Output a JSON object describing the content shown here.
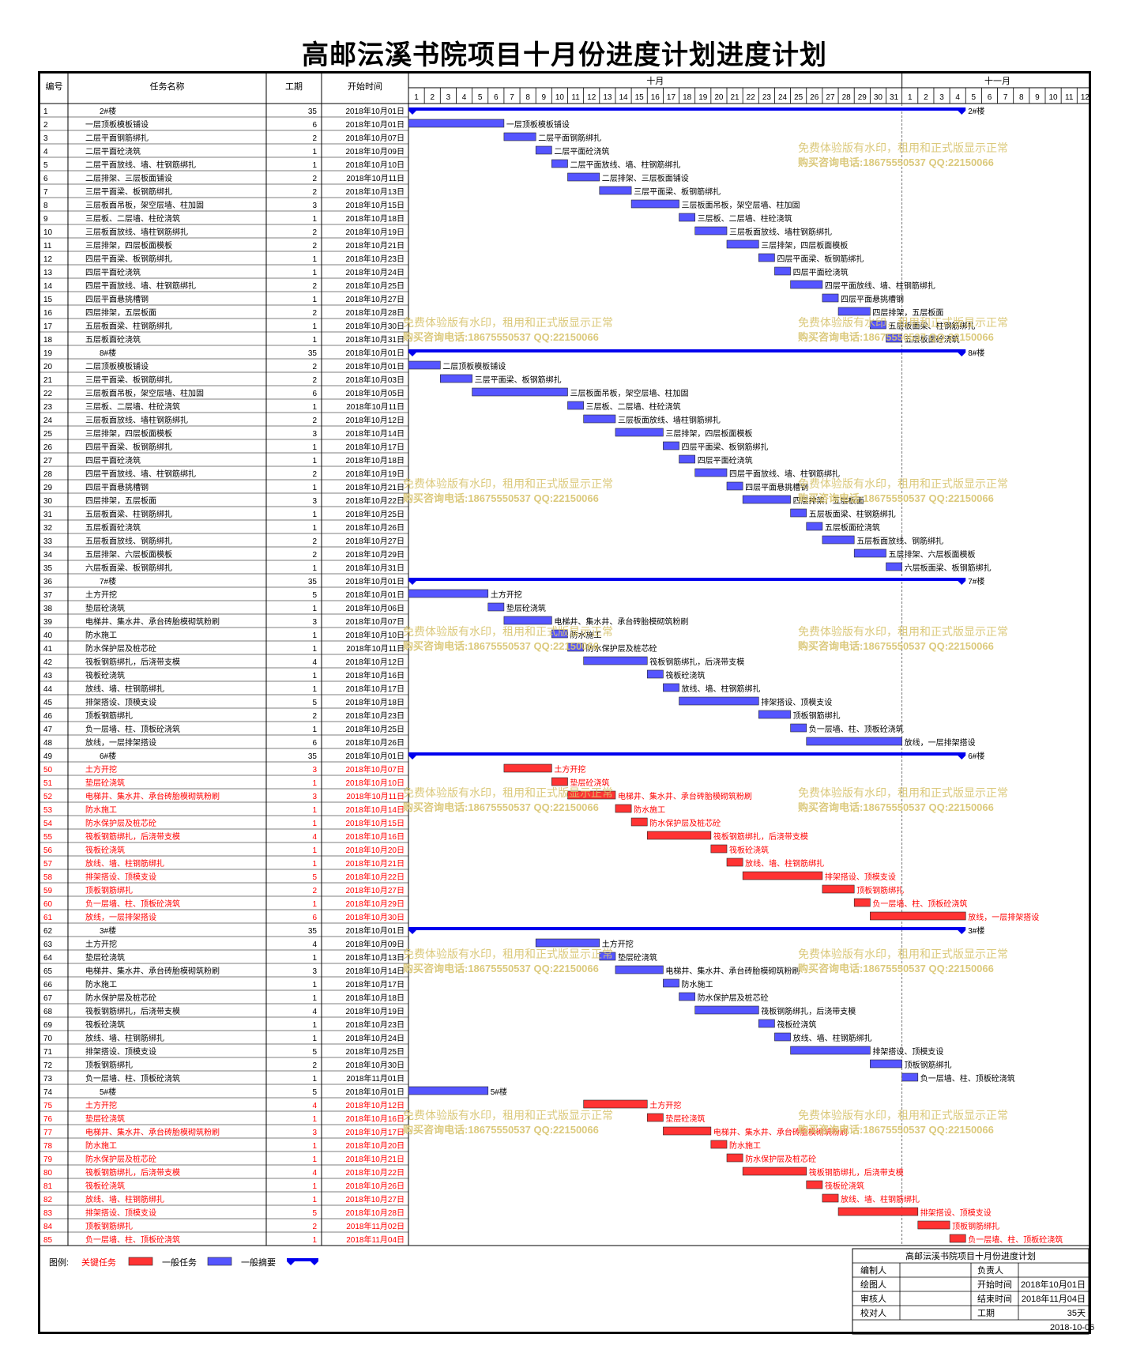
{
  "title": "高邮沄溪书院项目十月份进度计划进度计划",
  "headers": {
    "id": "编号",
    "name": "任务名称",
    "dur": "工期",
    "start": "开始时间"
  },
  "months": [
    {
      "label": "十月",
      "days": 31
    },
    {
      "label": "十一月",
      "days": 12
    }
  ],
  "watermark": {
    "line1": "免费体验版有水印，租用和正式版显示正常",
    "line2": "购买咨询电话:18675550537 QQ:22150066"
  },
  "legend": {
    "label": "图例:",
    "critical": "关键任务",
    "normal": "一般任务",
    "summary": "一般摘要"
  },
  "info": {
    "project": "高邮沄溪书院项目十月份进度计划",
    "made_by": "编制人",
    "owner": "负责人",
    "drawn_by": "绘图人",
    "start_label": "开始时间",
    "start": "2018年10月01日",
    "reviewed_by": "审核人",
    "end_label": "结束时间",
    "end": "2018年11月04日",
    "checked_by": "校对人",
    "dur_label": "工期",
    "dur": "35天",
    "date": "2018-10-06"
  },
  "colors": {
    "critical": "#ff3333",
    "normal": "#5555ff",
    "summary": "#0000ee",
    "critical_text": "#ff0000"
  },
  "chart_data": {
    "type": "gantt",
    "x_axis": "2018年10月1日 – 11月12日",
    "tasks": [
      {
        "id": 1,
        "name": "2#楼",
        "dur": 35,
        "start": "2018年10月01日",
        "type": "summary",
        "level": 0
      },
      {
        "id": 2,
        "name": "一层顶板模板铺设",
        "dur": 6,
        "start": "2018年10月01日",
        "type": "normal",
        "level": 1
      },
      {
        "id": 3,
        "name": "二层平面钢筋绑扎",
        "dur": 2,
        "start": "2018年10月07日",
        "type": "normal",
        "level": 1
      },
      {
        "id": 4,
        "name": "二层平面砼浇筑",
        "dur": 1,
        "start": "2018年10月09日",
        "type": "normal",
        "level": 1
      },
      {
        "id": 5,
        "name": "二层平面放线、墙、柱钢筋绑扎",
        "dur": 1,
        "start": "2018年10月10日",
        "type": "normal",
        "level": 1
      },
      {
        "id": 6,
        "name": "二层排架、三层板面铺设",
        "dur": 2,
        "start": "2018年10月11日",
        "type": "normal",
        "level": 1
      },
      {
        "id": 7,
        "name": "三层平面梁、板钢筋绑扎",
        "dur": 2,
        "start": "2018年10月13日",
        "type": "normal",
        "level": 1
      },
      {
        "id": 8,
        "name": "三层板面吊板，架空层墙、柱加固",
        "dur": 3,
        "start": "2018年10月15日",
        "type": "normal",
        "level": 1
      },
      {
        "id": 9,
        "name": "三层板、二层墙、柱砼浇筑",
        "dur": 1,
        "start": "2018年10月18日",
        "type": "normal",
        "level": 1
      },
      {
        "id": 10,
        "name": "三层板面放线、墙柱钢筋绑扎",
        "dur": 2,
        "start": "2018年10月19日",
        "type": "normal",
        "level": 1
      },
      {
        "id": 11,
        "name": "三层排架，四层板面模板",
        "dur": 2,
        "start": "2018年10月21日",
        "type": "normal",
        "level": 1
      },
      {
        "id": 12,
        "name": "四层平面梁、板钢筋绑扎",
        "dur": 1,
        "start": "2018年10月23日",
        "type": "normal",
        "level": 1
      },
      {
        "id": 13,
        "name": "四层平面砼浇筑",
        "dur": 1,
        "start": "2018年10月24日",
        "type": "normal",
        "level": 1
      },
      {
        "id": 14,
        "name": "四层平面放线、墙、柱钢筋绑扎",
        "dur": 2,
        "start": "2018年10月25日",
        "type": "normal",
        "level": 1
      },
      {
        "id": 15,
        "name": "四层平面悬挑槽钢",
        "dur": 1,
        "start": "2018年10月27日",
        "type": "normal",
        "level": 1
      },
      {
        "id": 16,
        "name": "四层排架，五层板面",
        "dur": 2,
        "start": "2018年10月28日",
        "type": "normal",
        "level": 1
      },
      {
        "id": 17,
        "name": "五层板面梁、柱钢筋绑扎",
        "dur": 1,
        "start": "2018年10月30日",
        "type": "normal",
        "level": 1
      },
      {
        "id": 18,
        "name": "五层板面砼浇筑",
        "dur": 1,
        "start": "2018年10月31日",
        "type": "normal",
        "level": 1
      },
      {
        "id": 19,
        "name": "8#楼",
        "dur": 35,
        "start": "2018年10月01日",
        "type": "summary",
        "level": 0
      },
      {
        "id": 20,
        "name": "二层顶板模板铺设",
        "dur": 2,
        "start": "2018年10月01日",
        "type": "normal",
        "level": 1
      },
      {
        "id": 21,
        "name": "三层平面梁、板钢筋绑扎",
        "dur": 2,
        "start": "2018年10月03日",
        "type": "normal",
        "level": 1
      },
      {
        "id": 22,
        "name": "三层板面吊板，架空层墙、柱加固",
        "dur": 6,
        "start": "2018年10月05日",
        "type": "normal",
        "level": 1
      },
      {
        "id": 23,
        "name": "三层板、二层墙、柱砼浇筑",
        "dur": 1,
        "start": "2018年10月11日",
        "type": "normal",
        "level": 1
      },
      {
        "id": 24,
        "name": "三层板面放线、墙柱钢筋绑扎",
        "dur": 2,
        "start": "2018年10月12日",
        "type": "normal",
        "level": 1
      },
      {
        "id": 25,
        "name": "三层排架，四层板面模板",
        "dur": 3,
        "start": "2018年10月14日",
        "type": "normal",
        "level": 1
      },
      {
        "id": 26,
        "name": "四层平面梁、板钢筋绑扎",
        "dur": 1,
        "start": "2018年10月17日",
        "type": "normal",
        "level": 1
      },
      {
        "id": 27,
        "name": "四层平面砼浇筑",
        "dur": 1,
        "start": "2018年10月18日",
        "type": "normal",
        "level": 1
      },
      {
        "id": 28,
        "name": "四层平面放线、墙、柱钢筋绑扎",
        "dur": 2,
        "start": "2018年10月19日",
        "type": "normal",
        "level": 1
      },
      {
        "id": 29,
        "name": "四层平面悬挑槽钢",
        "dur": 1,
        "start": "2018年10月21日",
        "type": "normal",
        "level": 1
      },
      {
        "id": 30,
        "name": "四层排架，五层板面",
        "dur": 3,
        "start": "2018年10月22日",
        "type": "normal",
        "level": 1
      },
      {
        "id": 31,
        "name": "五层板面梁、柱钢筋绑扎",
        "dur": 1,
        "start": "2018年10月25日",
        "type": "normal",
        "level": 1
      },
      {
        "id": 32,
        "name": "五层板面砼浇筑",
        "dur": 1,
        "start": "2018年10月26日",
        "type": "normal",
        "level": 1
      },
      {
        "id": 33,
        "name": "五层板面放线、钢筋绑扎",
        "dur": 2,
        "start": "2018年10月27日",
        "type": "normal",
        "level": 1
      },
      {
        "id": 34,
        "name": "五层排架、六层板面模板",
        "dur": 2,
        "start": "2018年10月29日",
        "type": "normal",
        "level": 1
      },
      {
        "id": 35,
        "name": "六层板面梁、板钢筋绑扎",
        "dur": 1,
        "start": "2018年10月31日",
        "type": "normal",
        "level": 1
      },
      {
        "id": 36,
        "name": "7#楼",
        "dur": 35,
        "start": "2018年10月01日",
        "type": "summary",
        "level": 0
      },
      {
        "id": 37,
        "name": "土方开挖",
        "dur": 5,
        "start": "2018年10月01日",
        "type": "normal",
        "level": 1
      },
      {
        "id": 38,
        "name": "垫层砼浇筑",
        "dur": 1,
        "start": "2018年10月06日",
        "type": "normal",
        "level": 1
      },
      {
        "id": 39,
        "name": "电梯井、集水井、承台砖胎模砌筑粉刷",
        "dur": 3,
        "start": "2018年10月07日",
        "type": "normal",
        "level": 1
      },
      {
        "id": 40,
        "name": "防水施工",
        "dur": 1,
        "start": "2018年10月10日",
        "type": "normal",
        "level": 1
      },
      {
        "id": 41,
        "name": "防水保护层及桩芯砼",
        "dur": 1,
        "start": "2018年10月11日",
        "type": "normal",
        "level": 1
      },
      {
        "id": 42,
        "name": "筏板钢筋绑扎，后浇带支模",
        "dur": 4,
        "start": "2018年10月12日",
        "type": "normal",
        "level": 1
      },
      {
        "id": 43,
        "name": "筏板砼浇筑",
        "dur": 1,
        "start": "2018年10月16日",
        "type": "normal",
        "level": 1
      },
      {
        "id": 44,
        "name": "放线、墙、柱钢筋绑扎",
        "dur": 1,
        "start": "2018年10月17日",
        "type": "normal",
        "level": 1
      },
      {
        "id": 45,
        "name": "排架搭设、顶模支设",
        "dur": 5,
        "start": "2018年10月18日",
        "type": "normal",
        "level": 1
      },
      {
        "id": 46,
        "name": "顶板钢筋绑扎",
        "dur": 2,
        "start": "2018年10月23日",
        "type": "normal",
        "level": 1
      },
      {
        "id": 47,
        "name": "负一层墙、柱、顶板砼浇筑",
        "dur": 1,
        "start": "2018年10月25日",
        "type": "normal",
        "level": 1
      },
      {
        "id": 48,
        "name": "放线，一层排架搭设",
        "dur": 6,
        "start": "2018年10月26日",
        "type": "normal",
        "level": 1
      },
      {
        "id": 49,
        "name": "6#楼",
        "dur": 35,
        "start": "2018年10月01日",
        "type": "summary",
        "level": 0
      },
      {
        "id": 50,
        "name": "土方开挖",
        "dur": 3,
        "start": "2018年10月07日",
        "type": "critical",
        "level": 1
      },
      {
        "id": 51,
        "name": "垫层砼浇筑",
        "dur": 1,
        "start": "2018年10月10日",
        "type": "critical",
        "level": 1
      },
      {
        "id": 52,
        "name": "电梯井、集水井、承台砖胎模砌筑粉刷",
        "dur": 3,
        "start": "2018年10月11日",
        "type": "critical",
        "level": 1
      },
      {
        "id": 53,
        "name": "防水施工",
        "dur": 1,
        "start": "2018年10月14日",
        "type": "critical",
        "level": 1
      },
      {
        "id": 54,
        "name": "防水保护层及桩芯砼",
        "dur": 1,
        "start": "2018年10月15日",
        "type": "critical",
        "level": 1
      },
      {
        "id": 55,
        "name": "筏板钢筋绑扎，后浇带支模",
        "dur": 4,
        "start": "2018年10月16日",
        "type": "critical",
        "level": 1
      },
      {
        "id": 56,
        "name": "筏板砼浇筑",
        "dur": 1,
        "start": "2018年10月20日",
        "type": "critical",
        "level": 1
      },
      {
        "id": 57,
        "name": "放线、墙、柱钢筋绑扎",
        "dur": 1,
        "start": "2018年10月21日",
        "type": "critical",
        "level": 1
      },
      {
        "id": 58,
        "name": "排架搭设、顶模支设",
        "dur": 5,
        "start": "2018年10月22日",
        "type": "critical",
        "level": 1
      },
      {
        "id": 59,
        "name": "顶板钢筋绑扎",
        "dur": 2,
        "start": "2018年10月27日",
        "type": "critical",
        "level": 1
      },
      {
        "id": 60,
        "name": "负一层墙、柱、顶板砼浇筑",
        "dur": 1,
        "start": "2018年10月29日",
        "type": "critical",
        "level": 1
      },
      {
        "id": 61,
        "name": "放线，一层排架搭设",
        "dur": 6,
        "start": "2018年10月30日",
        "type": "critical",
        "level": 1
      },
      {
        "id": 62,
        "name": "3#楼",
        "dur": 35,
        "start": "2018年10月01日",
        "type": "summary",
        "level": 0
      },
      {
        "id": 63,
        "name": "土方开挖",
        "dur": 4,
        "start": "2018年10月09日",
        "type": "normal",
        "level": 1
      },
      {
        "id": 64,
        "name": "垫层砼浇筑",
        "dur": 1,
        "start": "2018年10月13日",
        "type": "normal",
        "level": 1
      },
      {
        "id": 65,
        "name": "电梯井、集水井、承台砖胎模砌筑粉刷",
        "dur": 3,
        "start": "2018年10月14日",
        "type": "normal",
        "level": 1
      },
      {
        "id": 66,
        "name": "防水施工",
        "dur": 1,
        "start": "2018年10月17日",
        "type": "normal",
        "level": 1
      },
      {
        "id": 67,
        "name": "防水保护层及桩芯砼",
        "dur": 1,
        "start": "2018年10月18日",
        "type": "normal",
        "level": 1
      },
      {
        "id": 68,
        "name": "筏板钢筋绑扎，后浇带支模",
        "dur": 4,
        "start": "2018年10月19日",
        "type": "normal",
        "level": 1
      },
      {
        "id": 69,
        "name": "筏板砼浇筑",
        "dur": 1,
        "start": "2018年10月23日",
        "type": "normal",
        "level": 1
      },
      {
        "id": 70,
        "name": "放线、墙、柱钢筋绑扎",
        "dur": 1,
        "start": "2018年10月24日",
        "type": "normal",
        "level": 1
      },
      {
        "id": 71,
        "name": "排架搭设、顶模支设",
        "dur": 5,
        "start": "2018年10月25日",
        "type": "normal",
        "level": 1
      },
      {
        "id": 72,
        "name": "顶板钢筋绑扎",
        "dur": 2,
        "start": "2018年10月30日",
        "type": "normal",
        "level": 1
      },
      {
        "id": 73,
        "name": "负一层墙、柱、顶板砼浇筑",
        "dur": 1,
        "start": "2018年11月01日",
        "type": "normal",
        "level": 1
      },
      {
        "id": 74,
        "name": "5#楼",
        "dur": 5,
        "start": "2018年10月01日",
        "type": "normal",
        "level": 0
      },
      {
        "id": 75,
        "name": "土方开挖",
        "dur": 4,
        "start": "2018年10月12日",
        "type": "critical",
        "level": 1
      },
      {
        "id": 76,
        "name": "垫层砼浇筑",
        "dur": 1,
        "start": "2018年10月16日",
        "type": "critical",
        "level": 1
      },
      {
        "id": 77,
        "name": "电梯井、集水井、承台砖胎模砌筑粉刷",
        "dur": 3,
        "start": "2018年10月17日",
        "type": "critical",
        "level": 1
      },
      {
        "id": 78,
        "name": "防水施工",
        "dur": 1,
        "start": "2018年10月20日",
        "type": "critical",
        "level": 1
      },
      {
        "id": 79,
        "name": "防水保护层及桩芯砼",
        "dur": 1,
        "start": "2018年10月21日",
        "type": "critical",
        "level": 1
      },
      {
        "id": 80,
        "name": "筏板钢筋绑扎，后浇带支模",
        "dur": 4,
        "start": "2018年10月22日",
        "type": "critical",
        "level": 1
      },
      {
        "id": 81,
        "name": "筏板砼浇筑",
        "dur": 1,
        "start": "2018年10月26日",
        "type": "critical",
        "level": 1
      },
      {
        "id": 82,
        "name": "放线、墙、柱钢筋绑扎",
        "dur": 1,
        "start": "2018年10月27日",
        "type": "critical",
        "level": 1
      },
      {
        "id": 83,
        "name": "排架搭设、顶模支设",
        "dur": 5,
        "start": "2018年10月28日",
        "type": "critical",
        "level": 1
      },
      {
        "id": 84,
        "name": "顶板钢筋绑扎",
        "dur": 2,
        "start": "2018年11月02日",
        "type": "critical",
        "level": 1
      },
      {
        "id": 85,
        "name": "负一层墙、柱、顶板砼浇筑",
        "dur": 1,
        "start": "2018年11月04日",
        "type": "critical",
        "level": 1
      }
    ]
  }
}
